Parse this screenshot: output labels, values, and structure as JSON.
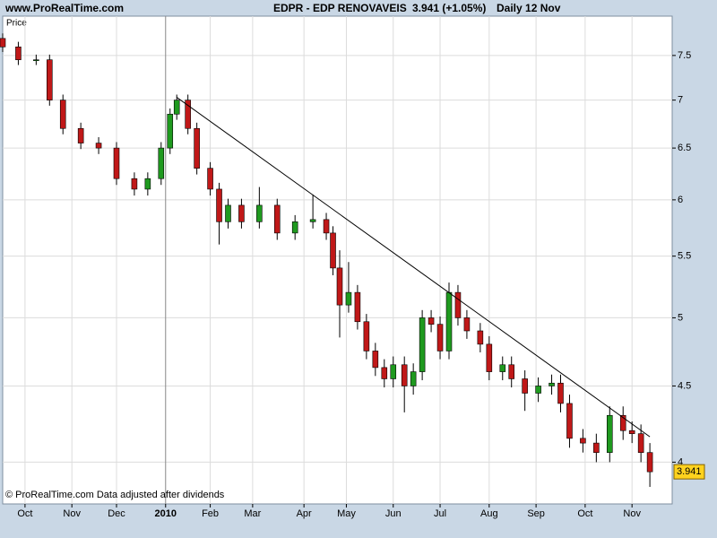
{
  "header": {
    "source": "www.ProRealTime.com",
    "instrument": "EDPR - EDP RENOVAVEIS",
    "quote": "3.941 (+1.05%)",
    "period": "Daily  12 Nov"
  },
  "chart_data": {
    "type": "candlestick",
    "y_label": "Price",
    "footnote": "© ProRealTime.com Data adjusted after dividends",
    "log_scale": true,
    "grid": true,
    "up_color": "#1f9a1f",
    "down_color": "#c01818",
    "wick_color": "#000000",
    "x": [
      0,
      7,
      15,
      21,
      27,
      35,
      43,
      51,
      59,
      65,
      71,
      75,
      78,
      83,
      87,
      93,
      97,
      101,
      107,
      115,
      123,
      131,
      139,
      145,
      148,
      151,
      155,
      159,
      163,
      167,
      171,
      175,
      180,
      184,
      188,
      192,
      196,
      200,
      204,
      208,
      214,
      218,
      224,
      228,
      234,
      240,
      246,
      250,
      254,
      260,
      266,
      272,
      278,
      282,
      286,
      290
    ],
    "open": [
      7.7,
      7.6,
      7.45,
      7.45,
      7.0,
      6.7,
      6.55,
      6.5,
      6.2,
      6.1,
      6.2,
      6.5,
      6.85,
      7.0,
      6.7,
      6.3,
      6.1,
      5.8,
      5.95,
      5.8,
      5.95,
      5.7,
      5.8,
      5.82,
      5.7,
      5.4,
      5.1,
      5.2,
      4.97,
      4.75,
      4.63,
      4.55,
      4.65,
      4.5,
      4.6,
      5.0,
      4.95,
      4.75,
      5.2,
      5.0,
      4.9,
      4.8,
      4.6,
      4.65,
      4.55,
      4.45,
      4.5,
      4.52,
      4.38,
      4.15,
      4.12,
      4.06,
      4.3,
      4.2,
      4.18,
      4.06
    ],
    "high": [
      7.76,
      7.66,
      7.51,
      7.51,
      7.06,
      6.76,
      6.61,
      6.56,
      6.26,
      6.26,
      6.56,
      6.91,
      7.06,
      7.06,
      6.76,
      6.36,
      6.16,
      6.01,
      6.01,
      6.12,
      6.01,
      5.86,
      6.05,
      5.88,
      5.76,
      5.55,
      5.45,
      5.26,
      5.03,
      4.81,
      4.69,
      4.71,
      4.71,
      4.66,
      5.06,
      5.06,
      5.01,
      5.28,
      5.26,
      5.06,
      4.96,
      4.86,
      4.71,
      4.71,
      4.61,
      4.56,
      4.58,
      4.58,
      4.44,
      4.21,
      4.18,
      4.36,
      4.36,
      4.26,
      4.24,
      4.12
    ],
    "low": [
      7.54,
      7.39,
      7.39,
      6.94,
      6.64,
      6.49,
      6.44,
      6.14,
      6.04,
      6.04,
      6.14,
      6.44,
      6.79,
      6.64,
      6.24,
      6.04,
      5.6,
      5.74,
      5.74,
      5.74,
      5.64,
      5.64,
      5.74,
      5.64,
      5.34,
      4.85,
      5.04,
      4.91,
      4.69,
      4.57,
      4.49,
      4.49,
      4.32,
      4.44,
      4.54,
      4.89,
      4.69,
      4.69,
      4.94,
      4.84,
      4.74,
      4.54,
      4.54,
      4.49,
      4.33,
      4.39,
      4.44,
      4.32,
      4.09,
      4.06,
      4.0,
      4.0,
      4.14,
      4.12,
      4.0,
      3.85
    ],
    "close": [
      7.6,
      7.45,
      7.45,
      7.0,
      6.7,
      6.55,
      6.5,
      6.2,
      6.1,
      6.2,
      6.5,
      6.85,
      7.0,
      6.7,
      6.3,
      6.1,
      5.8,
      5.95,
      5.8,
      5.95,
      5.7,
      5.8,
      5.82,
      5.7,
      5.4,
      5.1,
      5.2,
      4.97,
      4.75,
      4.63,
      4.55,
      4.65,
      4.5,
      4.6,
      5.0,
      4.95,
      4.75,
      5.2,
      5.0,
      4.9,
      4.8,
      4.6,
      4.65,
      4.55,
      4.45,
      4.5,
      4.52,
      4.38,
      4.15,
      4.12,
      4.06,
      4.3,
      4.2,
      4.18,
      4.06,
      3.941
    ],
    "xlim": [
      0,
      300
    ],
    "xticks": [
      {
        "value": 10,
        "label": "Oct"
      },
      {
        "value": 31,
        "label": "Nov"
      },
      {
        "value": 51,
        "label": "Dec"
      },
      {
        "value": 73,
        "label": "2010"
      },
      {
        "value": 93,
        "label": "Feb"
      },
      {
        "value": 112,
        "label": "Mar"
      },
      {
        "value": 135,
        "label": "Apr"
      },
      {
        "value": 154,
        "label": "May"
      },
      {
        "value": 175,
        "label": "Jun"
      },
      {
        "value": 196,
        "label": "Jul"
      },
      {
        "value": 218,
        "label": "Aug"
      },
      {
        "value": 239,
        "label": "Sep"
      },
      {
        "value": 261,
        "label": "Oct"
      },
      {
        "value": 282,
        "label": "Nov"
      }
    ],
    "ylim": [
      3.75,
      7.97
    ],
    "yticks": [
      4,
      4.5,
      5,
      5.5,
      6,
      6.5,
      7,
      7.5
    ],
    "trendline": {
      "x": [
        78,
        290
      ],
      "y": [
        7.03,
        4.16
      ]
    }
  }
}
